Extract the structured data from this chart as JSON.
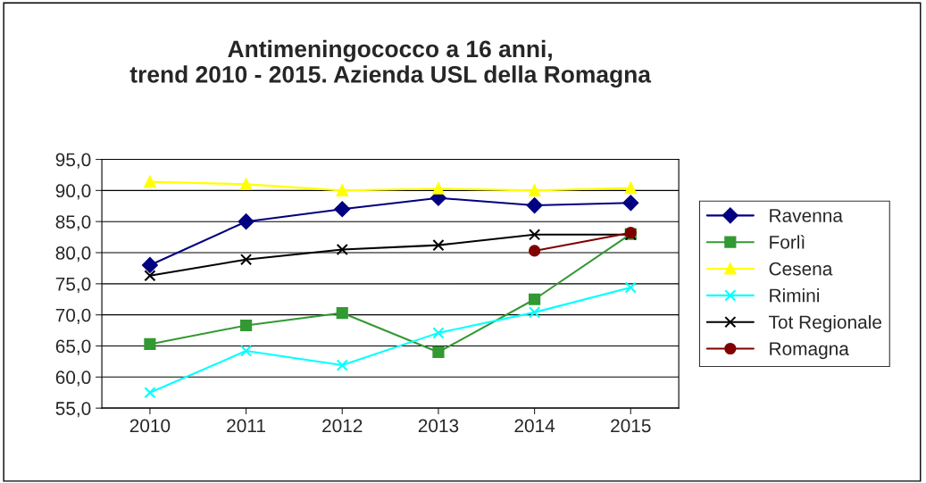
{
  "chart_data": {
    "type": "line",
    "title": "Antimeningococco a 16 anni,\ntrend 2010 - 2015. Azienda USL della Romagna",
    "categories": [
      "2010",
      "2011",
      "2012",
      "2013",
      "2014",
      "2015"
    ],
    "series": [
      {
        "name": "Ravenna",
        "color": "#000080",
        "marker": "diamond",
        "values": [
          78.0,
          85.0,
          87.0,
          88.8,
          87.6,
          88.0
        ]
      },
      {
        "name": "Forlì",
        "color": "#339933",
        "marker": "square",
        "values": [
          65.3,
          68.3,
          70.3,
          64.0,
          72.5,
          83.0
        ]
      },
      {
        "name": "Cesena",
        "color": "#ffff00",
        "marker": "triangle",
        "values": [
          91.4,
          91.0,
          90.0,
          90.3,
          90.0,
          90.4
        ]
      },
      {
        "name": "Rimini",
        "color": "#00ffff",
        "marker": "cross",
        "values": [
          57.5,
          64.2,
          61.9,
          67.1,
          70.4,
          74.4
        ]
      },
      {
        "name": "Tot Regionale",
        "color": "#000000",
        "marker": "cross",
        "values": [
          76.3,
          78.9,
          80.5,
          81.2,
          82.9,
          82.9
        ]
      },
      {
        "name": "Romagna",
        "color": "#800000",
        "marker": "circle",
        "values": [
          null,
          null,
          null,
          null,
          80.3,
          83.2
        ]
      }
    ],
    "ylim": [
      55,
      95
    ],
    "yticks": [
      {
        "value": 55,
        "label": "55,0"
      },
      {
        "value": 60,
        "label": "60,0"
      },
      {
        "value": 65,
        "label": "65,0"
      },
      {
        "value": 70,
        "label": "70,0"
      },
      {
        "value": 75,
        "label": "75,0"
      },
      {
        "value": 80,
        "label": "80,0"
      },
      {
        "value": 85,
        "label": "85,0"
      },
      {
        "value": 90,
        "label": "90,0"
      },
      {
        "value": 95,
        "label": "95,0"
      }
    ],
    "grid": "y",
    "legend": "right",
    "line_style": "solid"
  }
}
